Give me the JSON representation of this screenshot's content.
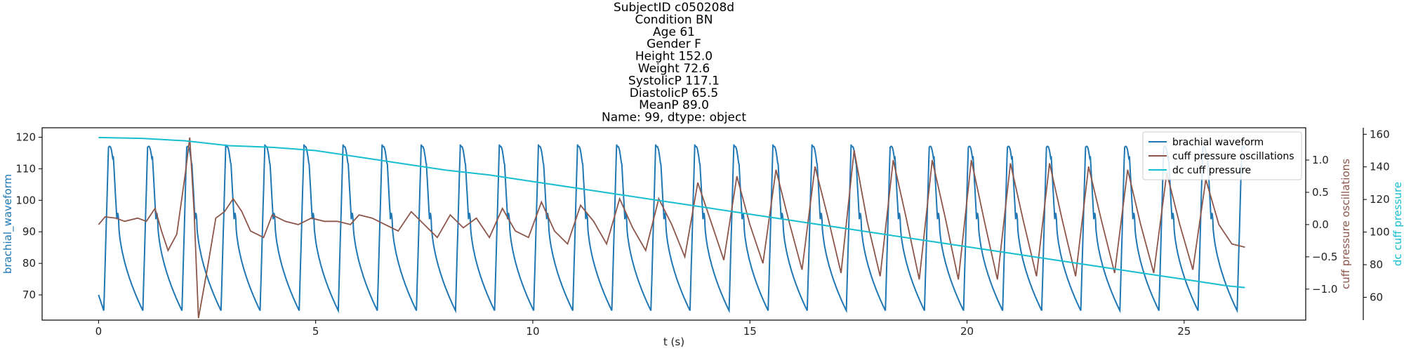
{
  "chart_data": {
    "type": "line",
    "title_lines": [
      "SubjectID     c050208d",
      "Condition          BN",
      "Age               61",
      "Gender             F",
      "Height          152.0",
      "Weight           72.6",
      "SystolicP       117.1",
      "DiastolicP       65.5",
      "MeanP            89.0",
      "Name: 99, dtype: object"
    ],
    "xlabel": "t (s)",
    "xlim": [
      -1.3,
      27.8
    ],
    "xticks": [
      0,
      5,
      10,
      15,
      20,
      25
    ],
    "x_end": 26.4,
    "grid": false,
    "legend_position": "top-right",
    "axes": {
      "left": {
        "label": "brachial_waveform",
        "color": "#1f77b4",
        "ylim": [
          62,
          123
        ],
        "ticks": [
          70,
          80,
          90,
          100,
          110,
          120
        ]
      },
      "right": {
        "label": "cuff pressure oscillations",
        "color": "#8c564b",
        "ylim": [
          -1.48,
          1.5
        ],
        "ticks": [
          -1.0,
          -0.5,
          0.0,
          0.5,
          1.0
        ],
        "tick_labels": [
          "−1.0",
          "−0.5",
          "0.0",
          "0.5",
          "1.0"
        ]
      },
      "right2": {
        "label": "dc cuff pressure",
        "color": "#17becf",
        "ylim": [
          46,
          164
        ],
        "ticks": [
          60,
          80,
          100,
          120,
          140,
          160
        ]
      }
    },
    "series": [
      {
        "name": "brachial waveform",
        "axis": "left",
        "color": "#1f77b4",
        "beat_period": 0.9,
        "first_upstroke": 0.12,
        "systolic_peak": 119,
        "diastolic_min": 65,
        "dicrotic_notch": 94
      },
      {
        "name": "cuff pressure oscillations",
        "axis": "right",
        "color": "#8c564b",
        "points": [
          [
            0,
            0.0
          ],
          [
            0.15,
            0.12
          ],
          [
            0.4,
            0.1
          ],
          [
            0.6,
            0.05
          ],
          [
            0.9,
            0.1
          ],
          [
            1.1,
            0.05
          ],
          [
            1.3,
            0.25
          ],
          [
            1.45,
            -0.1
          ],
          [
            1.6,
            -0.4
          ],
          [
            1.8,
            -0.15
          ],
          [
            2.0,
            0.8
          ],
          [
            2.1,
            1.35
          ],
          [
            2.2,
            0.2
          ],
          [
            2.3,
            -1.45
          ],
          [
            2.5,
            -0.7
          ],
          [
            2.7,
            0.1
          ],
          [
            2.9,
            0.2
          ],
          [
            3.1,
            0.4
          ],
          [
            3.3,
            0.2
          ],
          [
            3.5,
            -0.1
          ],
          [
            3.8,
            -0.2
          ],
          [
            4.0,
            0.15
          ],
          [
            4.3,
            0.05
          ],
          [
            4.6,
            0.0
          ],
          [
            4.9,
            0.1
          ],
          [
            5.2,
            0.05
          ],
          [
            5.5,
            0.05
          ],
          [
            5.8,
            0.0
          ],
          [
            6.0,
            0.15
          ],
          [
            6.3,
            0.1
          ],
          [
            6.6,
            0.0
          ],
          [
            6.9,
            -0.1
          ],
          [
            7.2,
            0.2
          ],
          [
            7.5,
            0.0
          ],
          [
            7.8,
            -0.2
          ],
          [
            8.1,
            0.15
          ],
          [
            8.4,
            -0.05
          ],
          [
            8.7,
            0.1
          ],
          [
            9.0,
            -0.2
          ],
          [
            9.3,
            0.25
          ],
          [
            9.6,
            -0.1
          ],
          [
            9.9,
            -0.2
          ],
          [
            10.2,
            0.35
          ],
          [
            10.5,
            -0.1
          ],
          [
            10.8,
            -0.3
          ],
          [
            11.1,
            0.3
          ],
          [
            11.4,
            0.05
          ],
          [
            11.7,
            -0.3
          ],
          [
            12.0,
            0.4
          ],
          [
            12.3,
            -0.05
          ],
          [
            12.6,
            -0.4
          ],
          [
            12.9,
            0.4
          ],
          [
            13.2,
            0.0
          ],
          [
            13.5,
            -0.5
          ],
          [
            13.8,
            0.65
          ],
          [
            14.1,
            0.05
          ],
          [
            14.4,
            -0.55
          ],
          [
            14.7,
            0.75
          ],
          [
            15.0,
            0.0
          ],
          [
            15.3,
            -0.6
          ],
          [
            15.6,
            0.85
          ],
          [
            15.9,
            0.05
          ],
          [
            16.2,
            -0.7
          ],
          [
            16.5,
            0.9
          ],
          [
            16.8,
            0.1
          ],
          [
            17.1,
            -0.75
          ],
          [
            17.4,
            1.15
          ],
          [
            17.7,
            0.05
          ],
          [
            18.0,
            -0.8
          ],
          [
            18.3,
            1.0
          ],
          [
            18.6,
            0.1
          ],
          [
            18.9,
            -0.85
          ],
          [
            19.2,
            1.0
          ],
          [
            19.5,
            0.1
          ],
          [
            19.8,
            -0.85
          ],
          [
            20.1,
            1.0
          ],
          [
            20.4,
            0.05
          ],
          [
            20.7,
            -0.85
          ],
          [
            21.0,
            0.95
          ],
          [
            21.3,
            0.05
          ],
          [
            21.6,
            -0.8
          ],
          [
            21.9,
            0.95
          ],
          [
            22.2,
            0.05
          ],
          [
            22.5,
            -0.8
          ],
          [
            22.8,
            0.9
          ],
          [
            23.1,
            0.05
          ],
          [
            23.4,
            -0.75
          ],
          [
            23.7,
            0.85
          ],
          [
            24.0,
            0.0
          ],
          [
            24.3,
            -0.75
          ],
          [
            24.6,
            0.8
          ],
          [
            24.9,
            0.0
          ],
          [
            25.2,
            -0.7
          ],
          [
            25.5,
            0.7
          ],
          [
            25.8,
            0.0
          ],
          [
            26.1,
            -0.3
          ],
          [
            26.4,
            -0.35
          ]
        ]
      },
      {
        "name": "dc cuff pressure",
        "axis": "right2",
        "color": "#17becf",
        "points": [
          [
            0,
            158
          ],
          [
            1,
            157.5
          ],
          [
            2,
            156
          ],
          [
            3,
            153
          ],
          [
            4,
            152
          ],
          [
            5,
            150
          ],
          [
            6,
            146
          ],
          [
            7,
            142
          ],
          [
            8,
            138
          ],
          [
            9,
            135
          ],
          [
            10,
            131
          ],
          [
            11,
            127
          ],
          [
            12,
            123
          ],
          [
            13,
            119
          ],
          [
            14,
            115
          ],
          [
            15,
            111
          ],
          [
            16,
            107
          ],
          [
            17,
            103
          ],
          [
            18,
            99
          ],
          [
            19,
            95
          ],
          [
            20,
            91
          ],
          [
            21,
            87
          ],
          [
            22,
            83
          ],
          [
            23,
            79
          ],
          [
            24,
            75
          ],
          [
            25,
            71
          ],
          [
            26,
            67
          ],
          [
            26.4,
            66
          ]
        ]
      }
    ],
    "legend": [
      "brachial waveform",
      "cuff pressure oscillations",
      "dc cuff pressure"
    ]
  }
}
